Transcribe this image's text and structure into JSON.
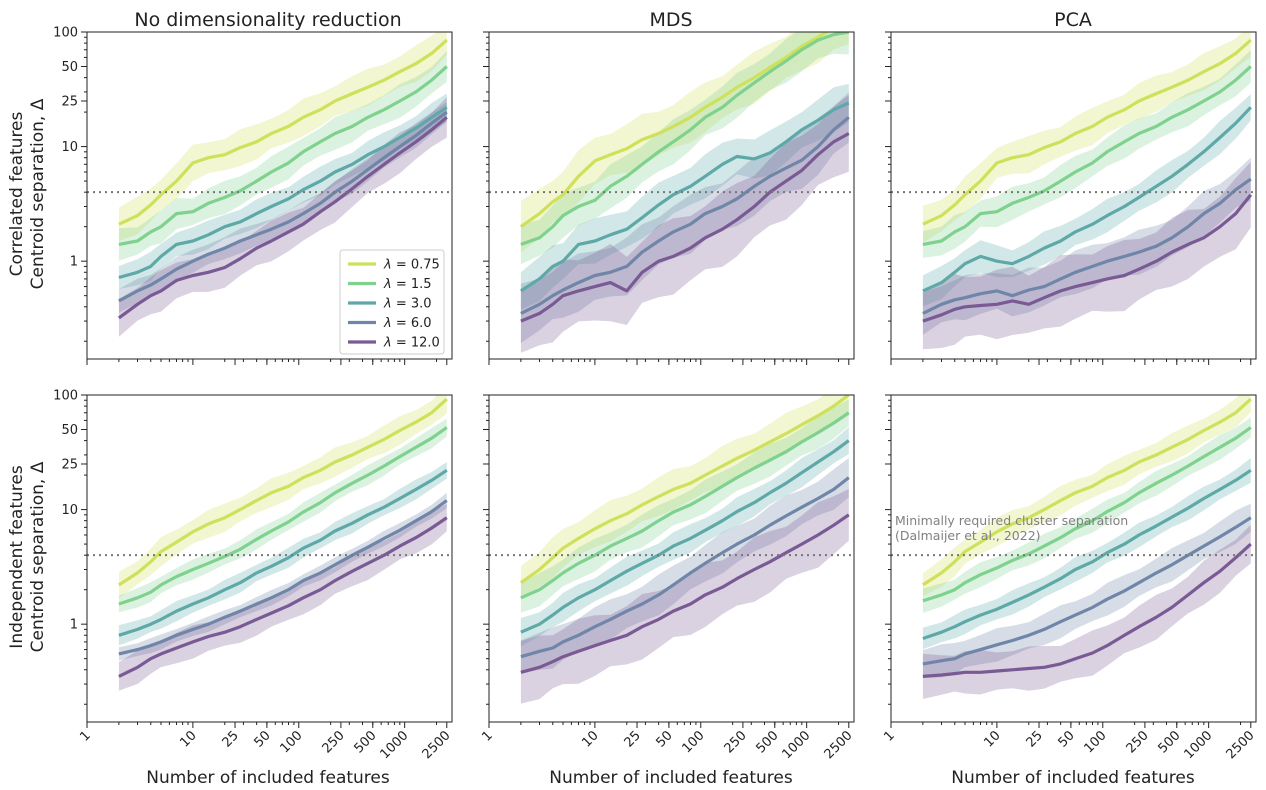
{
  "figure": {
    "col_titles": [
      "No dimensionality reduction",
      "MDS",
      "PCA"
    ],
    "row_ylabels": [
      [
        "Correlated features",
        "Centroid separation, Δ"
      ],
      [
        "Independent features",
        "Centroid separation, Δ"
      ]
    ],
    "xlabel": "Number of included features",
    "annotation": [
      "Minimally required cluster separation",
      "(Dalmaijer et al., 2022)"
    ]
  },
  "chart_data": {
    "type": "line",
    "x_scale": "log",
    "y_scale": "log",
    "xlim": [
      1,
      2800
    ],
    "ylim": [
      0.14,
      100
    ],
    "x_ticks": [
      1,
      10,
      25,
      50,
      100,
      250,
      500,
      1000,
      2500
    ],
    "y_ticks": [
      1,
      10,
      25,
      50,
      100
    ],
    "threshold": 4,
    "x": [
      2,
      3,
      4,
      5,
      7,
      10,
      14,
      20,
      28,
      40,
      55,
      80,
      110,
      160,
      220,
      320,
      450,
      640,
      900,
      1280,
      1800,
      2500
    ],
    "legend": {
      "placement": "lower right of top-left panel",
      "entries": [
        {
          "symbol": "λ",
          "value": "= 0.75",
          "color": "#cfe05a"
        },
        {
          "symbol": "λ",
          "value": "= 1.5",
          "color": "#7fd18e"
        },
        {
          "symbol": "λ",
          "value": "= 3.0",
          "color": "#5ea9a8"
        },
        {
          "symbol": "λ",
          "value": "= 6.0",
          "color": "#6f86a8"
        },
        {
          "symbol": "λ",
          "value": "= 12.0",
          "color": "#7a5a95"
        }
      ]
    },
    "panels": [
      {
        "row": 0,
        "col": 0,
        "series": [
          {
            "values": [
              2.1,
              2.5,
              3.1,
              3.8,
              5.0,
              7.2,
              8.0,
              8.5,
              9.8,
              11,
              13,
              15,
              18,
              21,
              25,
              29,
              33,
              38,
              45,
              53,
              65,
              85
            ],
            "spread": 1.4
          },
          {
            "values": [
              1.4,
              1.5,
              1.8,
              2.0,
              2.6,
              2.7,
              3.2,
              3.6,
              4.1,
              5.0,
              6.0,
              7.2,
              9.0,
              11,
              13,
              15,
              18,
              21,
              25,
              30,
              38,
              50
            ],
            "spread": 1.35
          },
          {
            "values": [
              0.72,
              0.8,
              0.9,
              1.1,
              1.4,
              1.5,
              1.7,
              2.0,
              2.2,
              2.6,
              3.0,
              3.5,
              4.2,
              5.0,
              6.0,
              7.0,
              8.5,
              10,
              12,
              14.5,
              18,
              22
            ],
            "spread": 1.3
          },
          {
            "values": [
              0.45,
              0.55,
              0.62,
              0.7,
              0.85,
              1.0,
              1.15,
              1.3,
              1.5,
              1.7,
              1.9,
              2.2,
              2.6,
              3.2,
              4.0,
              5.0,
              6.3,
              8.0,
              10,
              12.5,
              16,
              20
            ],
            "spread": 1.25
          },
          {
            "values": [
              0.32,
              0.42,
              0.5,
              0.55,
              0.68,
              0.75,
              0.8,
              0.88,
              1.05,
              1.3,
              1.5,
              1.8,
              2.1,
              2.7,
              3.3,
              4.3,
              5.5,
              7.0,
              8.8,
              11,
              14,
              18
            ],
            "spread": 1.45
          }
        ]
      },
      {
        "row": 0,
        "col": 1,
        "series": [
          {
            "values": [
              2.0,
              2.6,
              3.3,
              3.8,
              5.5,
              7.5,
              8.5,
              9.6,
              11.5,
              13,
              15,
              18,
              22,
              27,
              33,
              40,
              49,
              60,
              75,
              90,
              110,
              120
            ],
            "spread": 1.6
          },
          {
            "values": [
              1.4,
              1.6,
              2.0,
              2.5,
              3.0,
              3.4,
              4.5,
              5.5,
              7.0,
              9.0,
              11,
              14,
              18,
              22,
              28,
              36,
              45,
              56,
              70,
              85,
              95,
              100
            ],
            "spread": 1.5
          },
          {
            "values": [
              0.55,
              0.7,
              0.9,
              1.0,
              1.4,
              1.5,
              1.7,
              1.9,
              2.4,
              3.1,
              3.8,
              4.5,
              5.5,
              7.0,
              8.2,
              7.8,
              8.8,
              11,
              14,
              17,
              21,
              24
            ],
            "spread": 1.5
          },
          {
            "values": [
              0.35,
              0.42,
              0.5,
              0.56,
              0.65,
              0.75,
              0.8,
              0.9,
              1.2,
              1.5,
              1.8,
              2.1,
              2.6,
              3.0,
              3.5,
              4.5,
              5.5,
              6.5,
              7.6,
              10,
              14,
              18
            ],
            "spread": 1.7
          },
          {
            "values": [
              0.3,
              0.35,
              0.42,
              0.5,
              0.55,
              0.6,
              0.65,
              0.55,
              0.8,
              1.0,
              1.1,
              1.3,
              1.6,
              1.9,
              2.3,
              3.0,
              4.0,
              5.0,
              6.2,
              8.5,
              11,
              13
            ],
            "spread": 2.0
          }
        ]
      },
      {
        "row": 0,
        "col": 2,
        "series": [
          {
            "values": [
              2.1,
              2.5,
              3.1,
              3.8,
              5.0,
              7.2,
              8.0,
              8.5,
              9.8,
              11,
              13,
              15,
              18,
              21,
              25,
              29,
              33,
              38,
              45,
              53,
              65,
              85
            ],
            "spread": 1.4
          },
          {
            "values": [
              1.4,
              1.5,
              1.8,
              2.0,
              2.6,
              2.7,
              3.2,
              3.6,
              4.1,
              5.0,
              6.0,
              7.2,
              9.0,
              11,
              13,
              15,
              18,
              21,
              25,
              30,
              38,
              50
            ],
            "spread": 1.35
          },
          {
            "values": [
              0.55,
              0.65,
              0.8,
              0.95,
              1.1,
              1.0,
              0.95,
              1.1,
              1.3,
              1.5,
              1.8,
              2.1,
              2.5,
              3.0,
              3.6,
              4.5,
              5.5,
              7.0,
              9.0,
              12,
              16,
              22
            ],
            "spread": 1.35
          },
          {
            "values": [
              0.35,
              0.42,
              0.46,
              0.48,
              0.52,
              0.55,
              0.5,
              0.56,
              0.6,
              0.7,
              0.8,
              0.9,
              1.0,
              1.1,
              1.2,
              1.35,
              1.6,
              2.0,
              2.6,
              3.2,
              4.2,
              5.2
            ],
            "spread": 1.5
          },
          {
            "values": [
              0.3,
              0.34,
              0.38,
              0.4,
              0.41,
              0.42,
              0.45,
              0.42,
              0.48,
              0.55,
              0.6,
              0.65,
              0.7,
              0.75,
              0.85,
              1.0,
              1.2,
              1.4,
              1.6,
              2.0,
              2.6,
              3.8
            ],
            "spread": 1.9
          }
        ]
      },
      {
        "row": 1,
        "col": 0,
        "series": [
          {
            "values": [
              2.2,
              2.8,
              3.5,
              4.3,
              5.2,
              6.4,
              7.5,
              8.5,
              10,
              12,
              14,
              16,
              19,
              22,
              26,
              30,
              35,
              41,
              49,
              58,
              70,
              92
            ],
            "spread": 1.3
          },
          {
            "values": [
              1.5,
              1.7,
              1.9,
              2.2,
              2.6,
              3.0,
              3.4,
              3.9,
              4.5,
              5.5,
              6.5,
              7.8,
              9.5,
              11.5,
              14,
              17,
              20,
              24,
              29,
              35,
              42,
              52
            ],
            "spread": 1.2
          },
          {
            "values": [
              0.8,
              0.9,
              1.0,
              1.1,
              1.3,
              1.5,
              1.7,
              2.0,
              2.3,
              2.8,
              3.2,
              3.8,
              4.6,
              5.4,
              6.5,
              7.6,
              9.0,
              10.5,
              12.5,
              15,
              18,
              22
            ],
            "spread": 1.2
          },
          {
            "values": [
              0.55,
              0.6,
              0.65,
              0.7,
              0.8,
              0.9,
              1.0,
              1.15,
              1.3,
              1.5,
              1.7,
              2.0,
              2.4,
              2.8,
              3.3,
              4.0,
              4.7,
              5.6,
              6.6,
              8.0,
              9.6,
              12
            ],
            "spread": 1.15
          },
          {
            "values": [
              0.35,
              0.42,
              0.5,
              0.55,
              0.62,
              0.7,
              0.78,
              0.85,
              0.95,
              1.1,
              1.25,
              1.45,
              1.7,
              2.0,
              2.4,
              2.9,
              3.4,
              4.0,
              4.8,
              5.7,
              6.9,
              8.5
            ],
            "spread": 1.35
          }
        ]
      },
      {
        "row": 1,
        "col": 1,
        "series": [
          {
            "values": [
              2.3,
              3.0,
              3.8,
              4.6,
              5.6,
              6.8,
              8.0,
              9.2,
              11,
              13,
              15,
              17,
              20,
              24,
              28,
              33,
              39,
              46,
              55,
              66,
              80,
              100
            ],
            "spread": 1.45
          },
          {
            "values": [
              1.7,
              2.0,
              2.4,
              2.8,
              3.4,
              4.0,
              4.8,
              5.6,
              6.5,
              8.0,
              9.5,
              11,
              13,
              16,
              19,
              23,
              27,
              32,
              39,
              47,
              57,
              70
            ],
            "spread": 1.35
          },
          {
            "values": [
              0.85,
              1.0,
              1.2,
              1.4,
              1.7,
              2.0,
              2.4,
              2.9,
              3.4,
              4.0,
              4.8,
              5.6,
              6.6,
              8.0,
              9.6,
              11.5,
              14,
              17,
              21,
              26,
              32,
              40
            ],
            "spread": 1.3
          },
          {
            "values": [
              0.52,
              0.58,
              0.62,
              0.7,
              0.8,
              0.95,
              1.1,
              1.3,
              1.5,
              1.8,
              2.2,
              2.8,
              3.4,
              4.2,
              5.0,
              6.0,
              7.3,
              8.8,
              10.5,
              12.5,
              15,
              19
            ],
            "spread": 1.45
          },
          {
            "values": [
              0.38,
              0.42,
              0.47,
              0.52,
              0.58,
              0.65,
              0.72,
              0.8,
              0.95,
              1.1,
              1.3,
              1.5,
              1.8,
              2.1,
              2.5,
              3.0,
              3.5,
              4.2,
              5.0,
              6.0,
              7.3,
              9.0
            ],
            "spread": 1.8
          }
        ]
      },
      {
        "row": 1,
        "col": 2,
        "series": [
          {
            "values": [
              2.2,
              2.8,
              3.5,
              4.3,
              5.2,
              6.4,
              7.5,
              8.5,
              10,
              12,
              14,
              16,
              19,
              22,
              26,
              30,
              35,
              41,
              49,
              58,
              70,
              92
            ],
            "spread": 1.3
          },
          {
            "values": [
              1.6,
              1.8,
              2.0,
              2.3,
              2.7,
              3.1,
              3.6,
              4.1,
              4.8,
              5.7,
              6.8,
              8.0,
              9.6,
              11.5,
              14,
              17,
              20,
              24,
              29,
              35,
              42,
              52
            ],
            "spread": 1.25
          },
          {
            "values": [
              0.75,
              0.85,
              0.95,
              1.05,
              1.2,
              1.35,
              1.55,
              1.8,
              2.1,
              2.5,
              3.0,
              3.5,
              4.2,
              5.0,
              6.0,
              7.2,
              8.6,
              10.3,
              12.5,
              15,
              18,
              22
            ],
            "spread": 1.25
          },
          {
            "values": [
              0.45,
              0.48,
              0.5,
              0.55,
              0.6,
              0.66,
              0.72,
              0.8,
              0.9,
              1.05,
              1.2,
              1.4,
              1.65,
              1.95,
              2.3,
              2.8,
              3.3,
              4.0,
              4.8,
              5.8,
              7.0,
              8.5
            ],
            "spread": 1.35
          },
          {
            "values": [
              0.35,
              0.36,
              0.37,
              0.38,
              0.38,
              0.39,
              0.4,
              0.41,
              0.42,
              0.45,
              0.5,
              0.56,
              0.65,
              0.8,
              0.95,
              1.15,
              1.4,
              1.8,
              2.3,
              2.9,
              3.8,
              5.0
            ],
            "spread": 1.5
          }
        ]
      }
    ]
  }
}
